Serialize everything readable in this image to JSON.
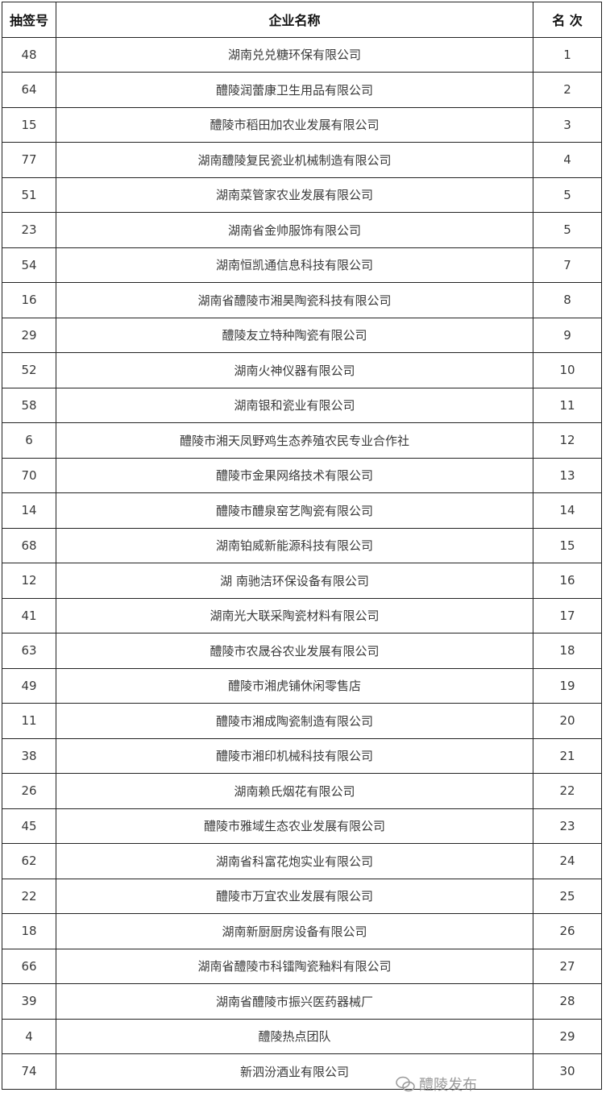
{
  "headers": [
    "抽签号",
    "企业名称",
    "名 次"
  ],
  "rows": [
    [
      "48",
      "湖南兑兑糖环保有限公司",
      "1"
    ],
    [
      "64",
      "醴陵润蕾康卫生用品有限公司",
      "2"
    ],
    [
      "15",
      "醴陵市稻田加农业发展有限公司",
      "3"
    ],
    [
      "77",
      "湖南醴陵复民瓷业机械制造有限公司",
      "4"
    ],
    [
      "51",
      "湖南菜管家农业发展有限公司",
      "5"
    ],
    [
      "23",
      "湖南省金帅服饰有限公司",
      "5"
    ],
    [
      "54",
      "湖南恒凯通信息科技有限公司",
      "7"
    ],
    [
      "16",
      "湖南省醴陵市湘昊陶瓷科技有限公司",
      "8"
    ],
    [
      "29",
      "醴陵友立特种陶瓷有限公司",
      "9"
    ],
    [
      "52",
      "湖南火神仪器有限公司",
      "10"
    ],
    [
      "58",
      "湖南银和瓷业有限公司",
      "11"
    ],
    [
      "6",
      "醴陵市湘天凤野鸡生态养殖农民专业合作社",
      "12"
    ],
    [
      "70",
      "醴陵市金果网络技术有限公司",
      "13"
    ],
    [
      "14",
      "醴陵市醴泉窑艺陶瓷有限公司",
      "14"
    ],
    [
      "68",
      "湖南铂威新能源科技有限公司",
      "15"
    ],
    [
      "12",
      "湖 南驰洁环保设备有限公司",
      "16"
    ],
    [
      "41",
      "湖南光大联采陶瓷材料有限公司",
      "17"
    ],
    [
      "63",
      "醴陵市农晟谷农业发展有限公司",
      "18"
    ],
    [
      "49",
      "醴陵市湘虎铺休闲零售店",
      "19"
    ],
    [
      "11",
      "醴陵市湘成陶瓷制造有限公司",
      "20"
    ],
    [
      "38",
      "醴陵市湘印机械科技有限公司",
      "21"
    ],
    [
      "26",
      "湖南赖氏烟花有限公司",
      "22"
    ],
    [
      "45",
      "醴陵市雅域生态农业发展有限公司",
      "23"
    ],
    [
      "62",
      "湖南省科富花炮实业有限公司",
      "24"
    ],
    [
      "22",
      "醴陵市万宜农业发展有限公司",
      "25"
    ],
    [
      "18",
      "湖南新厨厨房设备有限公司",
      "26"
    ],
    [
      "66",
      "湖南省醴陵市科镭陶瓷釉料有限公司",
      "27"
    ],
    [
      "39",
      "湖南省醴陵市振兴医药器械厂",
      "28"
    ],
    [
      "4",
      "醴陵热点团队",
      "29"
    ],
    [
      "74",
      "新泗汾酒业有限公司",
      "30"
    ]
  ],
  "watermark": {
    "text": "醴陵发布",
    "icon": "wechat-icon"
  }
}
